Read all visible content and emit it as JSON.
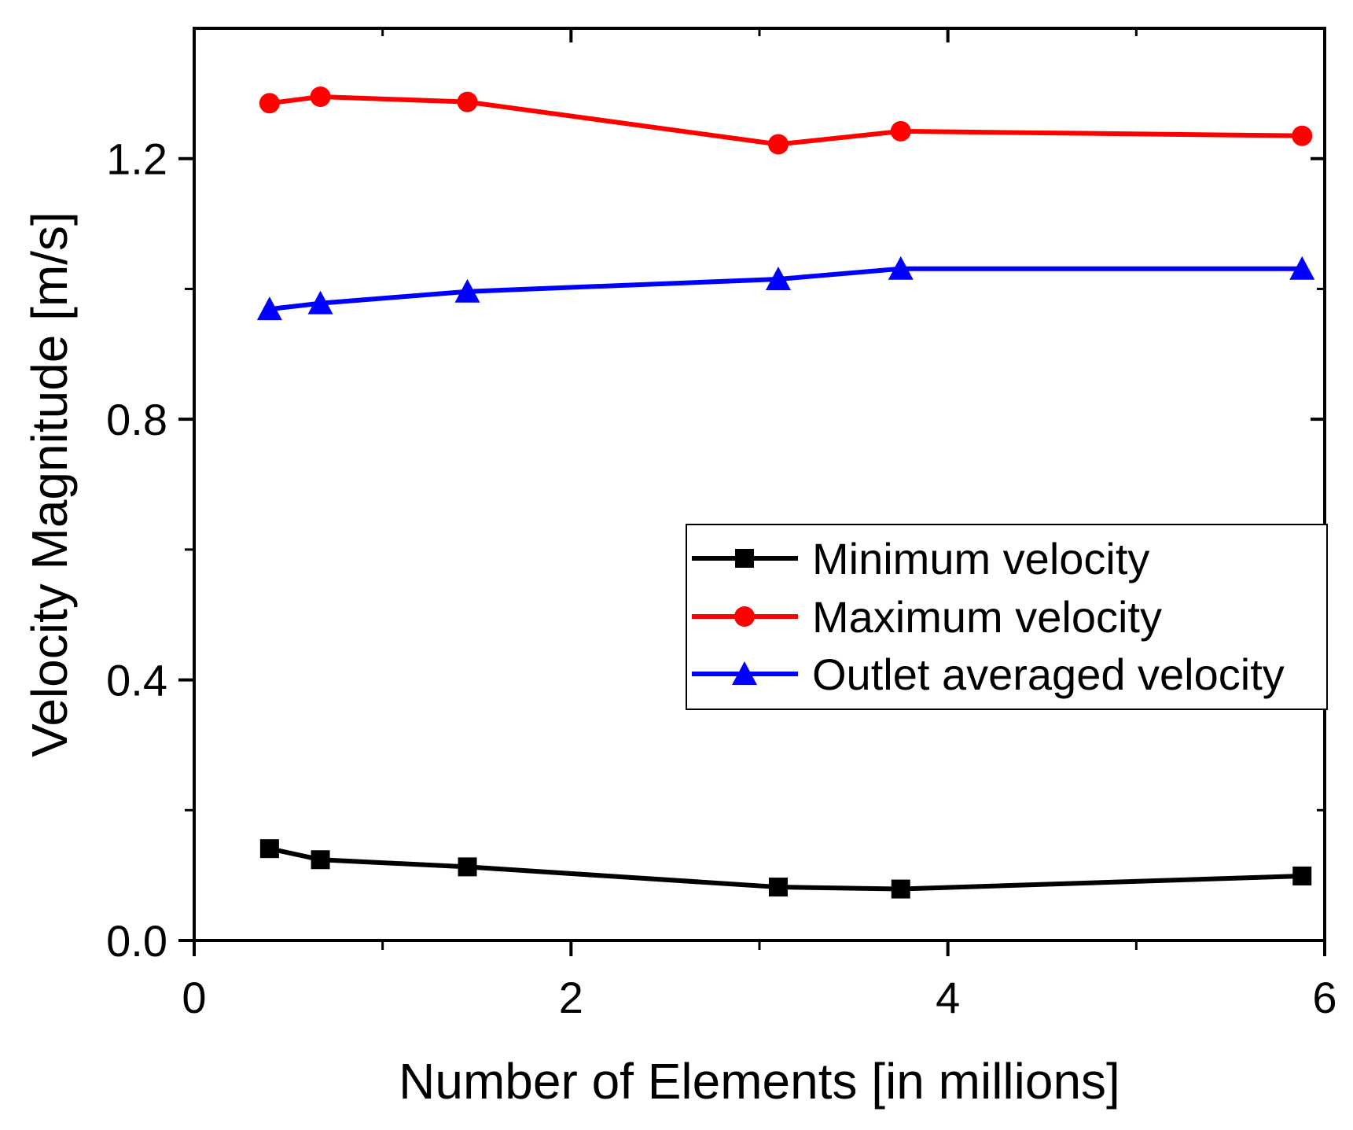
{
  "chart_data": {
    "type": "line",
    "title": "",
    "xlabel": "Number of Elements [in millions]",
    "ylabel": "Velocity Magnitude [m/s]",
    "xlim": [
      0,
      6
    ],
    "ylim": [
      0,
      1.4
    ],
    "x_ticks": [
      0,
      2,
      4,
      6
    ],
    "x_minor_ticks": [
      1,
      3,
      5
    ],
    "y_ticks": [
      0.0,
      0.4,
      0.8,
      1.2
    ],
    "y_tick_labels": [
      "0.0",
      "0.4",
      "0.8",
      "1.2"
    ],
    "y_minor_ticks": [
      0.2,
      0.6,
      1.0
    ],
    "grid": false,
    "legend_position": "center-right",
    "series": [
      {
        "name": "Minimum velocity",
        "color": "#000000",
        "marker": "square",
        "x": [
          0.4,
          0.67,
          1.45,
          3.1,
          3.75,
          5.88
        ],
        "y": [
          0.141,
          0.124,
          0.113,
          0.082,
          0.079,
          0.099
        ]
      },
      {
        "name": "Maximum velocity",
        "color": "#ff0000",
        "marker": "circle",
        "x": [
          0.4,
          0.67,
          1.45,
          3.1,
          3.75,
          5.88
        ],
        "y": [
          1.285,
          1.295,
          1.287,
          1.222,
          1.242,
          1.235
        ]
      },
      {
        "name": "Outlet averaged velocity",
        "color": "#0000ff",
        "marker": "triangle",
        "x": [
          0.4,
          0.67,
          1.45,
          3.1,
          3.75,
          5.88
        ],
        "y": [
          0.969,
          0.978,
          0.996,
          1.015,
          1.031,
          1.031
        ]
      }
    ]
  }
}
